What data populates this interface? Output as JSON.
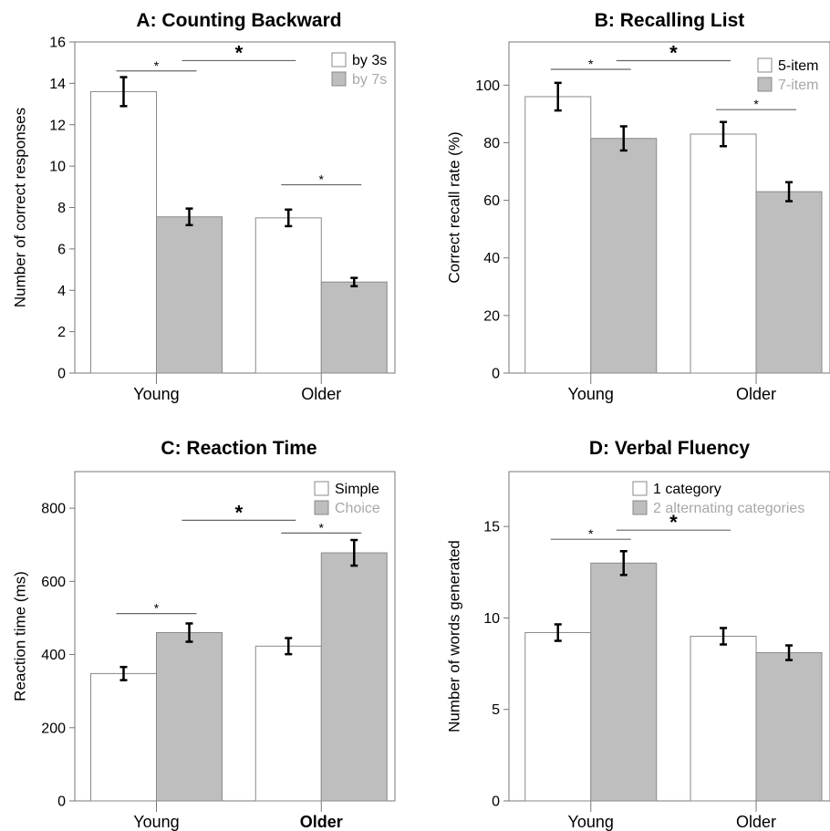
{
  "colors": {
    "white_bar": "#ffffff",
    "gray_bar": "#bebebe",
    "axis": "#777777",
    "text": "#000000",
    "legend_gray_text": "#a8a8a8",
    "line": "#666666"
  },
  "chart_data": [
    {
      "type": "bar",
      "title": "A: Counting Backward",
      "ylabel": "Number of correct responses",
      "xlabel": "",
      "ylim": [
        0,
        16
      ],
      "yticks": [
        "0",
        "2",
        "4",
        "6",
        "8",
        "10",
        "12",
        "14",
        "16"
      ],
      "categories": [
        "Young",
        "Older"
      ],
      "series": [
        {
          "name": "by 3s",
          "values": [
            13.6,
            7.5
          ],
          "errors": [
            0.7,
            0.4
          ]
        },
        {
          "name": "by 7s",
          "values": [
            7.55,
            4.4
          ],
          "errors": [
            0.4,
            0.2
          ]
        }
      ],
      "annotations": [
        {
          "label": "*",
          "size": "small",
          "from": "Young|0",
          "to": "Young|1",
          "y": 14.6
        },
        {
          "label": "*",
          "size": "large",
          "from": "Young|1",
          "to": "Older|0",
          "y": 15.1
        },
        {
          "label": "*",
          "size": "small",
          "from": "Older|0",
          "to": "Older|1",
          "y": 9.1
        }
      ],
      "legend": "top-right"
    },
    {
      "type": "bar",
      "title": "B: Recalling List",
      "ylabel": "Correct recall rate (%)",
      "xlabel": "",
      "ylim": [
        0,
        115
      ],
      "yticks": [
        "0",
        "20",
        "40",
        "60",
        "80",
        "100"
      ],
      "categories": [
        "Young",
        "Older"
      ],
      "series": [
        {
          "name": "5-item",
          "values": [
            96,
            83
          ],
          "errors": [
            4.8,
            4.2
          ]
        },
        {
          "name": "7-item",
          "values": [
            81.5,
            63
          ],
          "errors": [
            4.2,
            3.3
          ]
        }
      ],
      "annotations": [
        {
          "label": "*",
          "size": "small",
          "from": "Young|0",
          "to": "Young|1",
          "y": 105.5
        },
        {
          "label": "*",
          "size": "large",
          "from": "Young|1",
          "to": "Older|0",
          "y": 108.5
        },
        {
          "label": "*",
          "size": "small",
          "from": "Older|0",
          "to": "Older|1",
          "y": 91.5
        }
      ],
      "legend": "top-right"
    },
    {
      "type": "bar",
      "title": "C: Reaction Time",
      "ylabel": "Reaction time (ms)",
      "xlabel": "",
      "ylim": [
        0,
        900
      ],
      "yticks": [
        "0",
        "200",
        "400",
        "600",
        "800"
      ],
      "categories": [
        "Young",
        "Older"
      ],
      "series": [
        {
          "name": "Simple",
          "values": [
            348,
            423
          ],
          "errors": [
            18,
            22
          ]
        },
        {
          "name": "Choice",
          "values": [
            460,
            678
          ],
          "errors": [
            25,
            35
          ]
        }
      ],
      "annotations": [
        {
          "label": "*",
          "size": "small",
          "from": "Young|0",
          "to": "Young|1",
          "y": 512
        },
        {
          "label": "*",
          "size": "large",
          "from": "Young|1",
          "to": "Older|0",
          "y": 767
        },
        {
          "label": "*",
          "size": "small",
          "from": "Older|0",
          "to": "Older|1",
          "y": 732
        }
      ],
      "legend": "top-right"
    },
    {
      "type": "bar",
      "title": "D: Verbal Fluency",
      "ylabel": "Number of words generated",
      "xlabel": "",
      "ylim": [
        0,
        18
      ],
      "yticks": [
        "0",
        "5",
        "10",
        "15"
      ],
      "categories": [
        "Young",
        "Older"
      ],
      "series": [
        {
          "name": "1 category",
          "values": [
            9.2,
            9.0
          ],
          "errors": [
            0.45,
            0.45
          ]
        },
        {
          "name": "2 alternating categories",
          "values": [
            13.0,
            8.1
          ],
          "errors": [
            0.65,
            0.4
          ]
        }
      ],
      "annotations": [
        {
          "label": "*",
          "size": "small",
          "from": "Young|0",
          "to": "Young|1",
          "y": 14.3
        },
        {
          "label": "*",
          "size": "large",
          "from": "Young|1",
          "to": "Older|0",
          "y": 14.8
        }
      ],
      "legend": "top-right"
    }
  ]
}
